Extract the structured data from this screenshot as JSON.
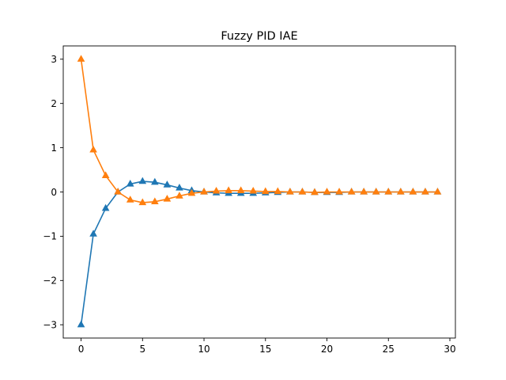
{
  "chart_data": {
    "type": "line",
    "title": "Fuzzy PID IAE",
    "xlabel": "",
    "ylabel": "",
    "xlim": [
      -1.45,
      30.45
    ],
    "ylim": [
      -3.3,
      3.3
    ],
    "xticks": [
      0,
      5,
      10,
      15,
      20,
      25,
      30
    ],
    "xtick_labels": [
      "0",
      "5",
      "10",
      "15",
      "20",
      "25",
      "30"
    ],
    "yticks": [
      -3,
      -2,
      -1,
      0,
      1,
      2,
      3
    ],
    "ytick_labels": [
      "−3",
      "−2",
      "−1",
      "0",
      "1",
      "2",
      "3"
    ],
    "grid": false,
    "legend": false,
    "marker": "triangle-up",
    "x": [
      0,
      1,
      2,
      3,
      4,
      5,
      6,
      7,
      8,
      9,
      10,
      11,
      12,
      13,
      14,
      15,
      16,
      17,
      18,
      19,
      20,
      21,
      22,
      23,
      24,
      25,
      26,
      27,
      28,
      29
    ],
    "series": [
      {
        "color": "#1f77b4",
        "values": [
          -3.0,
          -0.95,
          -0.37,
          0.0,
          0.18,
          0.24,
          0.22,
          0.16,
          0.09,
          0.03,
          0.0,
          -0.02,
          -0.03,
          -0.03,
          -0.03,
          -0.02,
          -0.01,
          0.0,
          0.0,
          -0.01,
          -0.01,
          -0.01,
          0.0,
          0.0,
          0.0,
          0.0,
          0.0,
          0.0,
          0.0,
          0.0
        ]
      },
      {
        "color": "#ff7f0e",
        "values": [
          3.0,
          0.95,
          0.37,
          0.0,
          -0.18,
          -0.24,
          -0.22,
          -0.16,
          -0.09,
          -0.03,
          0.0,
          0.02,
          0.03,
          0.03,
          0.02,
          0.01,
          0.01,
          0.0,
          0.0,
          -0.01,
          0.0,
          0.0,
          0.0,
          0.0,
          0.0,
          0.0,
          0.0,
          0.0,
          0.0,
          0.0
        ]
      }
    ]
  }
}
